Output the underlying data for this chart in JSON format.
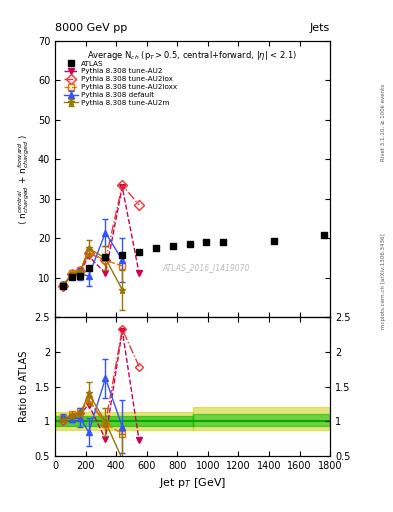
{
  "title_left": "8000 GeV pp",
  "title_right": "Jets",
  "right_label1": "Rivet 3.1.10, ≥ 100k events",
  "right_label2": "mcplots.cern.ch [arXiv:1306.3436]",
  "watermark": "ATLAS_2016_I1419070",
  "ylabel_ratio": "Ratio to ATLAS",
  "xlabel": "Jet p$_T$ [GeV]",
  "ylim_main": [
    0,
    70
  ],
  "ylim_ratio": [
    0.5,
    2.5
  ],
  "xlim": [
    0,
    1800
  ],
  "atlas_x": [
    55,
    110,
    165,
    220,
    330,
    440,
    550,
    660,
    770,
    880,
    990,
    1100,
    1430,
    1760
  ],
  "atlas_y": [
    8.0,
    10.2,
    10.5,
    12.5,
    15.2,
    15.9,
    16.5,
    17.5,
    18.0,
    18.7,
    19.0,
    19.1,
    19.3,
    20.8
  ],
  "pythia_default_x": [
    55,
    110,
    165,
    220,
    330,
    440
  ],
  "pythia_default_y": [
    8.5,
    10.5,
    11.0,
    10.5,
    21.5,
    14.5
  ],
  "pythia_default_yerr": [
    0.3,
    0.4,
    1.5,
    2.5,
    3.5,
    5.5
  ],
  "pythia_au2_x": [
    55,
    110,
    165,
    220,
    330,
    440,
    550
  ],
  "pythia_au2_y": [
    8.2,
    10.7,
    11.5,
    15.5,
    11.2,
    33.0,
    11.2
  ],
  "pythia_au2lox_x": [
    55,
    110,
    165,
    220,
    330,
    440,
    550
  ],
  "pythia_au2lox_y": [
    8.0,
    11.0,
    11.8,
    16.2,
    14.5,
    33.5,
    28.5
  ],
  "pythia_au2loxx_x": [
    55,
    110,
    165,
    220,
    330,
    440
  ],
  "pythia_au2loxx_y": [
    8.3,
    11.2,
    12.0,
    16.5,
    14.5,
    13.0
  ],
  "pythia_au2m_x": [
    55,
    110,
    165,
    220,
    330,
    440
  ],
  "pythia_au2m_y": [
    8.2,
    11.0,
    11.5,
    17.5,
    15.0,
    7.0
  ],
  "pythia_au2m_yerr": [
    0.2,
    0.3,
    0.4,
    2.0,
    3.0,
    5.0
  ],
  "ratio_default_x": [
    55,
    110,
    165,
    220,
    330,
    440
  ],
  "ratio_default_y": [
    1.06,
    1.03,
    1.05,
    0.84,
    1.62,
    0.92
  ],
  "ratio_default_yerr": [
    0.04,
    0.04,
    0.14,
    0.2,
    0.28,
    0.38
  ],
  "ratio_au2_x": [
    55,
    110,
    165,
    220,
    330,
    440,
    550
  ],
  "ratio_au2_y": [
    1.03,
    1.05,
    1.1,
    1.24,
    0.74,
    2.31,
    0.72
  ],
  "ratio_au2lox_x": [
    55,
    110,
    165,
    220,
    330,
    440,
    550
  ],
  "ratio_au2lox_y": [
    1.0,
    1.08,
    1.12,
    1.3,
    0.96,
    2.33,
    1.79
  ],
  "ratio_au2loxx_x": [
    55,
    110,
    165,
    220,
    330,
    440
  ],
  "ratio_au2loxx_y": [
    1.04,
    1.1,
    1.14,
    1.32,
    0.96,
    0.82
  ],
  "ratio_au2m_x": [
    55,
    110,
    165,
    220,
    330,
    440
  ],
  "ratio_au2m_y": [
    1.02,
    1.08,
    1.1,
    1.4,
    0.99,
    0.45
  ],
  "ratio_au2m_yerr": [
    0.02,
    0.03,
    0.04,
    0.16,
    0.2,
    0.36
  ],
  "color_atlas": "#000000",
  "color_default": "#3355ff",
  "color_au2": "#cc0055",
  "color_au2lox": "#ee3333",
  "color_au2loxx": "#dd7700",
  "color_au2m": "#997700",
  "legend_labels": [
    "ATLAS",
    "Pythia 8.308 default",
    "Pythia 8.308 tune-AU2",
    "Pythia 8.308 tune-AU2lox",
    "Pythia 8.308 tune-AU2loxx",
    "Pythia 8.308 tune-AU2m"
  ]
}
